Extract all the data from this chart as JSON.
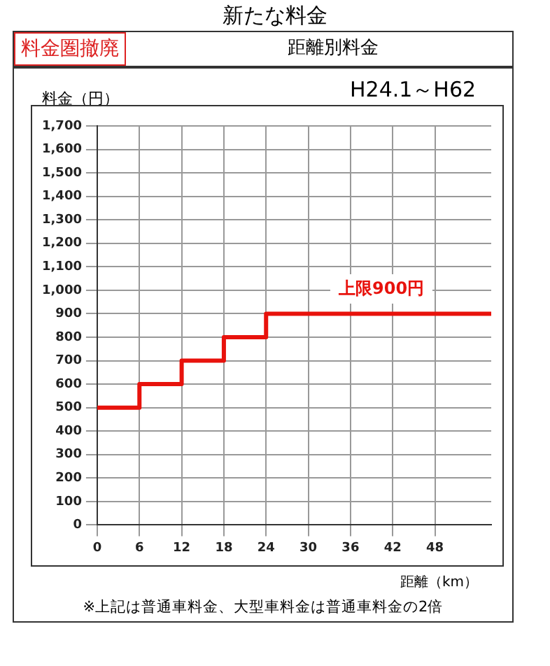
{
  "chart_data": {
    "type": "step",
    "title": "新たな料金",
    "subtitle": "距離別料金",
    "xlabel": "距離（km）",
    "ylabel": "料金（円）",
    "annotations": [
      "料金圏撤廃",
      "H24.1～H62",
      "上限900円",
      "※上記は普通車料金、大型車料金は普通車料金の2倍"
    ],
    "x": [
      0,
      6,
      12,
      18,
      24,
      56
    ],
    "series": [
      {
        "color": "#e8120c",
        "values": [
          500,
          600,
          700,
          800,
          900,
          900
        ]
      }
    ],
    "xlim": [
      0,
      56
    ],
    "xticks": [
      0,
      6,
      12,
      18,
      24,
      30,
      36,
      42,
      48
    ],
    "ylim": [
      0,
      1700
    ],
    "yticks": [
      0,
      100,
      200,
      300,
      400,
      500,
      600,
      700,
      800,
      900,
      {
        "value": 1000,
        "label": "1,000"
      },
      {
        "value": 1100,
        "label": "1,100"
      },
      {
        "value": 1200,
        "label": "1,200"
      },
      {
        "value": 1300,
        "label": "1,300"
      },
      {
        "value": 1400,
        "label": "1,400"
      },
      {
        "value": 1500,
        "label": "1,500"
      },
      {
        "value": 1600,
        "label": "1,600"
      },
      {
        "value": 1700,
        "label": "1,700"
      }
    ],
    "grid": true,
    "legend": false,
    "marker": "none",
    "line_style": "solid"
  }
}
